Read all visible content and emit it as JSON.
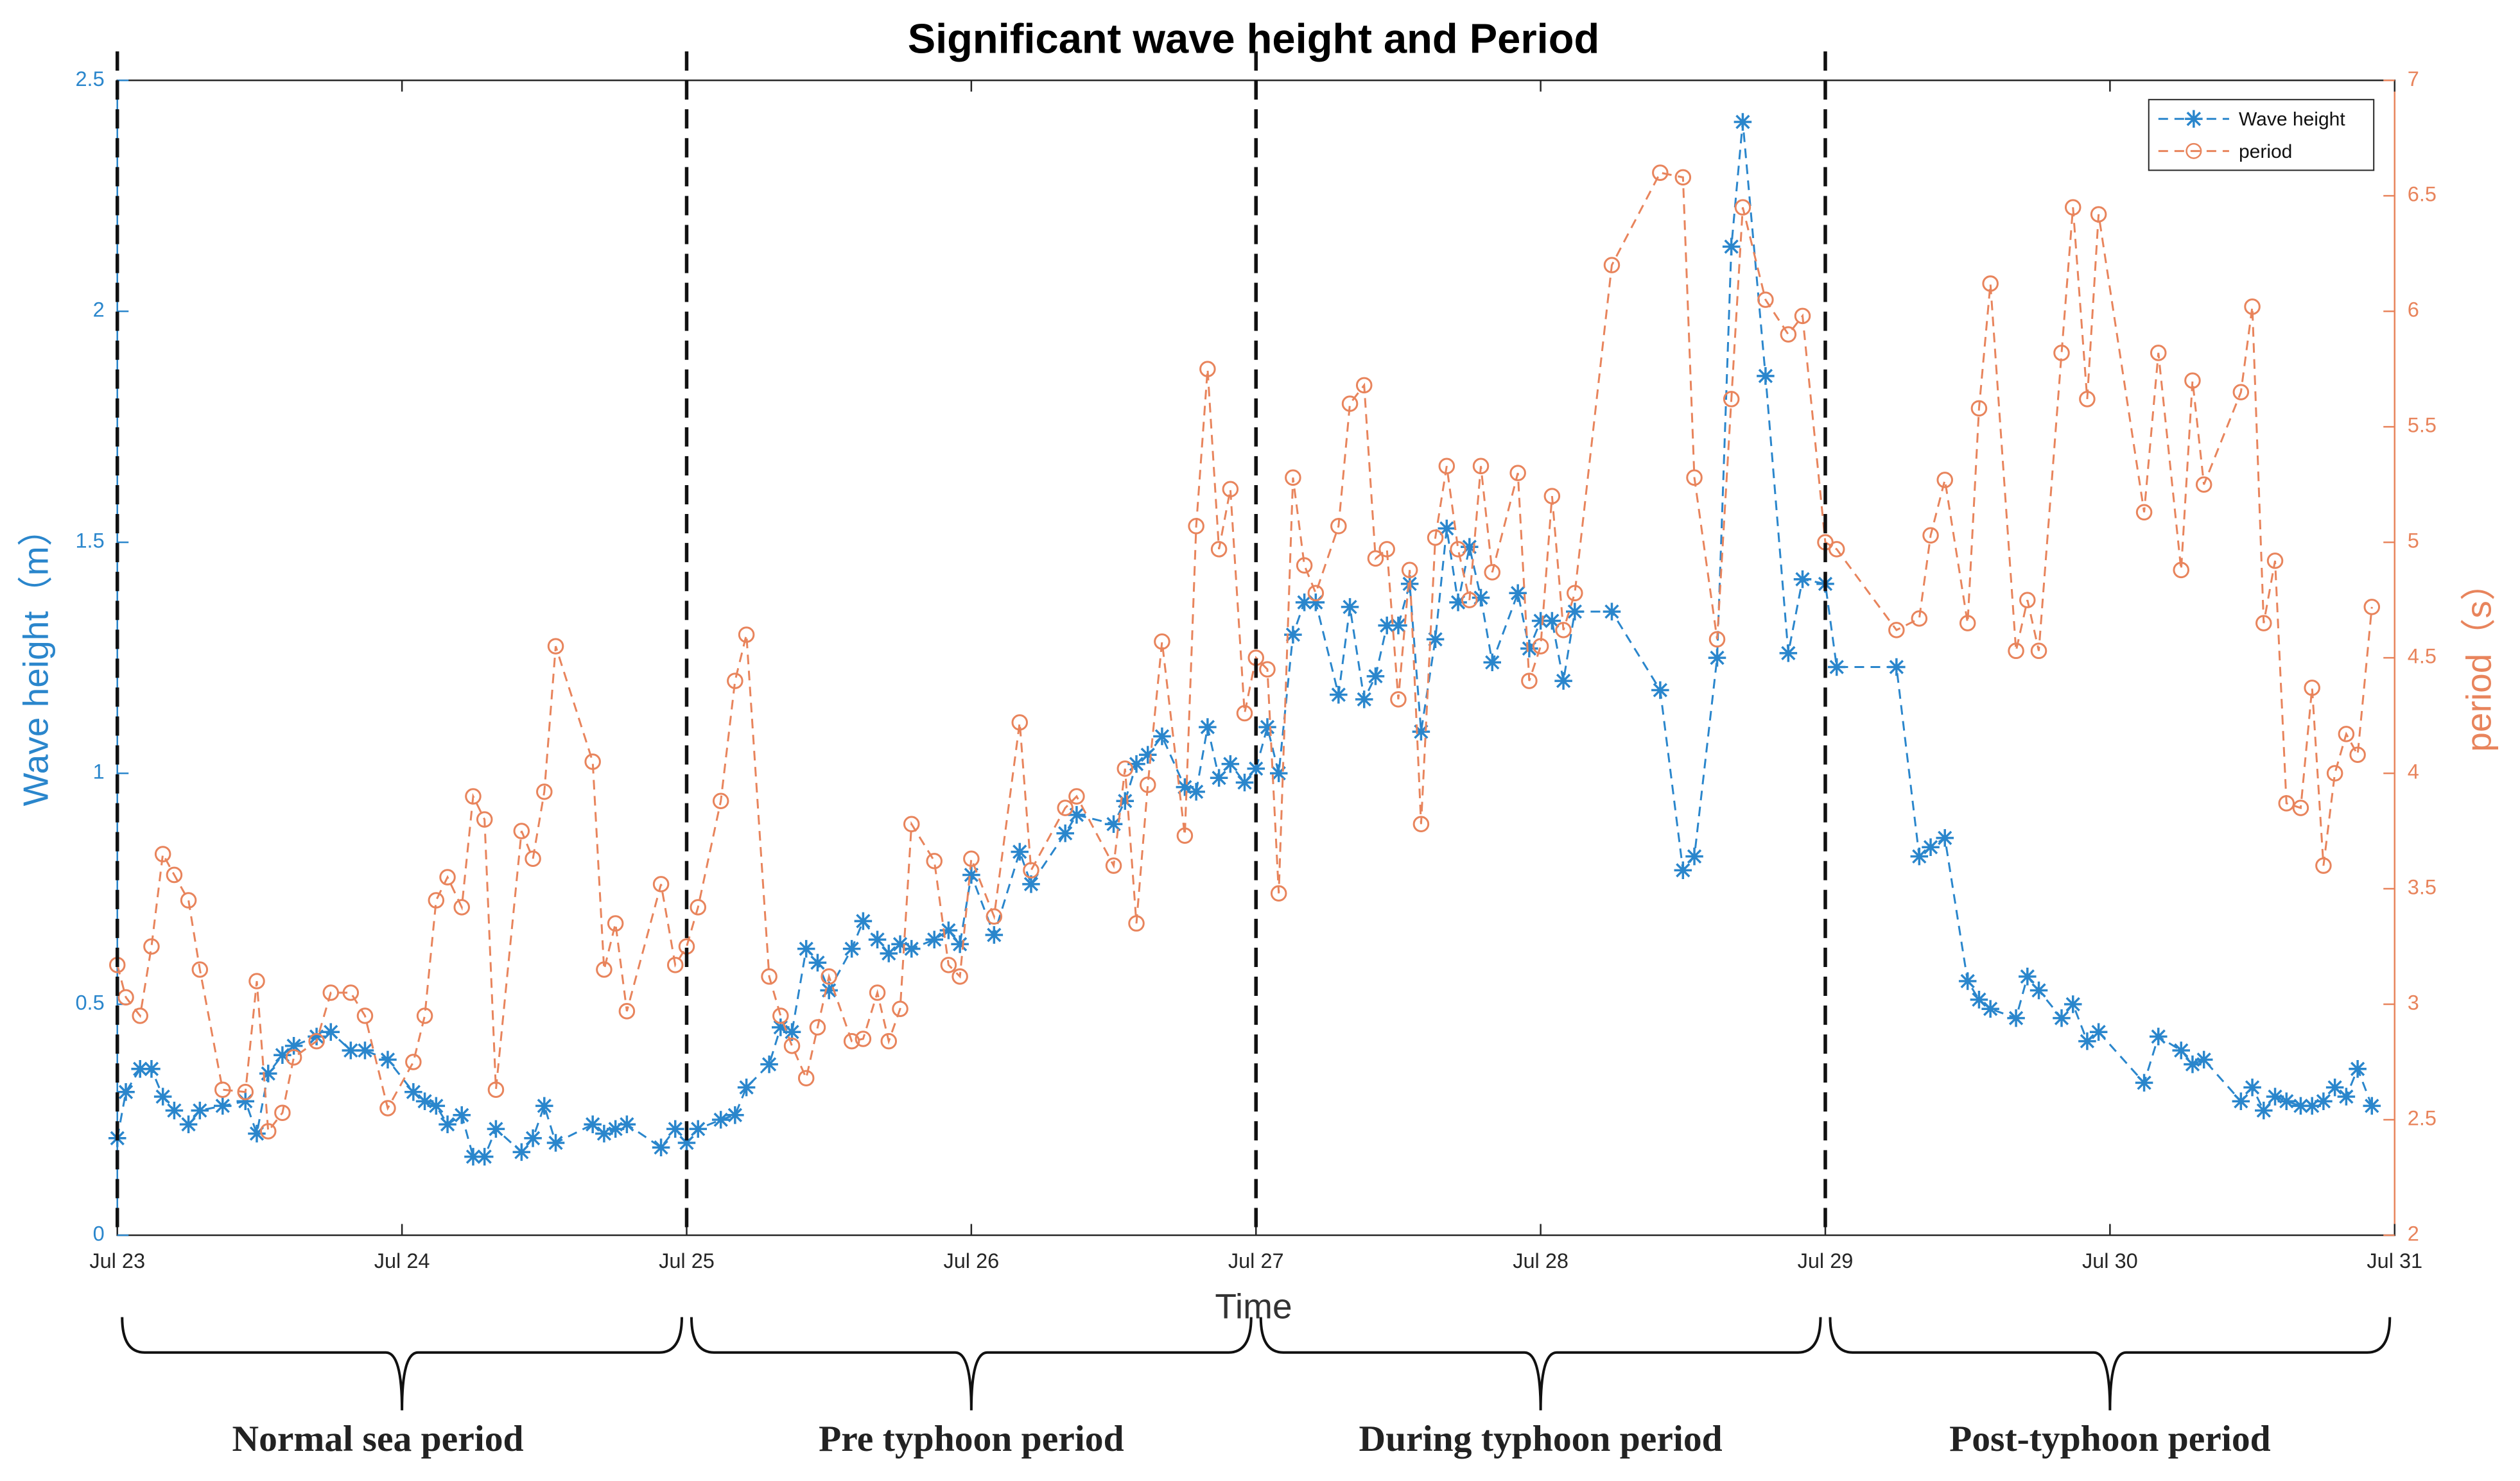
{
  "chart_data": {
    "type": "line",
    "title": "Significant wave height and Period",
    "xlabel": "Time",
    "ylabel": "Wave height（m）",
    "y2label": "period（s）",
    "xlim": [
      0,
      8
    ],
    "xticks": [
      {
        "value": 0,
        "label": "Jul 23"
      },
      {
        "value": 1,
        "label": "Jul 24"
      },
      {
        "value": 2,
        "label": "Jul 25"
      },
      {
        "value": 3,
        "label": "Jul 26"
      },
      {
        "value": 4,
        "label": "Jul 27"
      },
      {
        "value": 5,
        "label": "Jul 28"
      },
      {
        "value": 6,
        "label": "Jul 29"
      },
      {
        "value": 7,
        "label": "Jul 30"
      },
      {
        "value": 8,
        "label": "Jul 31"
      }
    ],
    "ylim": [
      0,
      2.5
    ],
    "yticks": [
      0,
      0.5,
      1,
      1.5,
      2,
      2.5
    ],
    "y2lim": [
      2,
      7
    ],
    "y2ticks": [
      2,
      2.5,
      3,
      3.5,
      4,
      4.5,
      5,
      5.5,
      6,
      6.5,
      7
    ],
    "legend": "upper right",
    "period_boundaries": [
      0,
      2,
      4,
      6,
      8
    ],
    "periods": [
      "Normal sea period",
      "Pre typhoon period",
      "During typhoon period",
      "Post-typhoon period"
    ],
    "x": [
      0.0,
      0.03,
      0.08,
      0.12,
      0.16,
      0.2,
      0.25,
      0.29,
      0.37,
      0.45,
      0.49,
      0.53,
      0.58,
      0.62,
      0.7,
      0.75,
      0.82,
      0.87,
      0.95,
      1.04,
      1.08,
      1.12,
      1.16,
      1.21,
      1.25,
      1.29,
      1.33,
      1.42,
      1.46,
      1.5,
      1.54,
      1.67,
      1.71,
      1.75,
      1.79,
      1.91,
      1.96,
      2.0,
      2.04,
      2.12,
      2.17,
      2.21,
      2.29,
      2.33,
      2.37,
      2.42,
      2.46,
      2.5,
      2.58,
      2.62,
      2.67,
      2.71,
      2.75,
      2.79,
      2.87,
      2.92,
      2.96,
      3.0,
      3.08,
      3.17,
      3.21,
      3.33,
      3.37,
      3.5,
      3.54,
      3.58,
      3.62,
      3.67,
      3.75,
      3.79,
      3.83,
      3.87,
      3.91,
      3.96,
      4.0,
      4.04,
      4.08,
      4.13,
      4.17,
      4.21,
      4.29,
      4.33,
      4.38,
      4.42,
      4.46,
      4.5,
      4.54,
      4.58,
      4.63,
      4.67,
      4.71,
      4.75,
      4.79,
      4.83,
      4.92,
      4.96,
      5.0,
      5.04,
      5.08,
      5.12,
      5.25,
      5.42,
      5.5,
      5.54,
      5.62,
      5.67,
      5.71,
      5.79,
      5.87,
      5.92,
      6.0,
      6.04,
      6.25,
      6.33,
      6.37,
      6.42,
      6.5,
      6.54,
      6.58,
      6.67,
      6.71,
      6.75,
      6.83,
      6.87,
      6.92,
      6.96,
      7.12,
      7.17,
      7.25,
      7.29,
      7.33,
      7.46,
      7.5,
      7.54,
      7.58,
      7.62,
      7.67,
      7.71,
      7.75,
      7.79,
      7.83,
      7.87,
      7.92
    ],
    "series": [
      {
        "name": "Wave height",
        "color": "#2a86cc",
        "axis": "y",
        "marker": "asterisk",
        "values": [
          0.21,
          0.31,
          0.36,
          0.36,
          0.3,
          0.27,
          0.24,
          0.27,
          0.28,
          0.29,
          0.22,
          0.35,
          0.39,
          0.41,
          0.43,
          0.44,
          0.4,
          0.4,
          0.38,
          0.31,
          0.29,
          0.28,
          0.24,
          0.26,
          0.17,
          0.17,
          0.23,
          0.18,
          0.21,
          0.28,
          0.2,
          0.24,
          0.22,
          0.23,
          0.24,
          0.19,
          0.23,
          0.2,
          0.23,
          0.25,
          0.26,
          0.32,
          0.37,
          0.45,
          0.44,
          0.62,
          0.59,
          0.53,
          0.62,
          0.68,
          0.64,
          0.61,
          0.63,
          0.62,
          0.64,
          0.66,
          0.63,
          0.78,
          0.65,
          0.83,
          0.76,
          0.87,
          0.91,
          0.89,
          0.94,
          1.02,
          1.04,
          1.08,
          0.97,
          0.96,
          1.1,
          0.99,
          1.02,
          0.98,
          1.01,
          1.1,
          1.0,
          1.3,
          1.37,
          1.37,
          1.17,
          1.36,
          1.16,
          1.21,
          1.32,
          1.32,
          1.41,
          1.09,
          1.29,
          1.53,
          1.37,
          1.49,
          1.38,
          1.24,
          1.39,
          1.27,
          1.33,
          1.33,
          1.2,
          1.35,
          1.35,
          1.18,
          0.79,
          0.82,
          1.25,
          2.14,
          2.41,
          1.86,
          1.26,
          1.42,
          1.41,
          1.23,
          1.23,
          0.82,
          0.84,
          0.86,
          0.55,
          0.51,
          0.49,
          0.47,
          0.56,
          0.53,
          0.47,
          0.5,
          0.42,
          0.44,
          0.33,
          0.43,
          0.4,
          0.37,
          0.38,
          0.29,
          0.32,
          0.27,
          0.3,
          0.29,
          0.28,
          0.28,
          0.29,
          0.32,
          0.3,
          0.36,
          0.28
        ]
      },
      {
        "name": "period",
        "color": "#e8845c",
        "axis": "y2",
        "marker": "circle",
        "values": [
          3.17,
          3.03,
          2.95,
          3.25,
          3.65,
          3.56,
          3.45,
          3.15,
          2.63,
          2.62,
          3.1,
          2.45,
          2.53,
          2.77,
          2.84,
          3.05,
          3.05,
          2.95,
          2.55,
          2.75,
          2.95,
          3.45,
          3.55,
          3.42,
          3.9,
          3.8,
          2.63,
          3.75,
          3.63,
          3.92,
          4.55,
          4.05,
          3.15,
          3.35,
          2.97,
          3.52,
          3.17,
          3.25,
          3.42,
          3.88,
          4.4,
          4.6,
          3.12,
          2.95,
          2.82,
          2.68,
          2.9,
          3.12,
          2.84,
          2.85,
          3.05,
          2.84,
          2.98,
          3.78,
          3.62,
          3.17,
          3.12,
          3.63,
          3.38,
          4.22,
          3.58,
          3.85,
          3.9,
          3.6,
          4.02,
          3.35,
          3.95,
          4.57,
          3.73,
          5.07,
          5.75,
          4.97,
          5.23,
          4.26,
          4.5,
          4.45,
          3.48,
          5.28,
          4.9,
          4.78,
          5.07,
          5.6,
          5.68,
          4.93,
          4.97,
          4.32,
          4.88,
          3.78,
          5.02,
          5.33,
          4.97,
          4.75,
          5.33,
          4.87,
          5.3,
          4.4,
          4.55,
          5.2,
          4.62,
          4.78,
          6.2,
          6.6,
          6.58,
          5.28,
          4.58,
          5.62,
          6.45,
          6.05,
          5.9,
          5.98,
          5.0,
          4.97,
          4.62,
          4.67,
          5.03,
          5.27,
          4.65,
          5.58,
          6.12,
          4.53,
          4.75,
          4.53,
          5.82,
          6.45,
          5.62,
          6.42,
          5.13,
          5.82,
          4.88,
          5.7,
          5.25,
          5.65,
          6.02,
          4.65,
          4.92,
          3.87,
          3.85,
          4.37,
          3.6,
          4.0,
          4.17,
          4.08,
          4.72
        ]
      }
    ]
  }
}
